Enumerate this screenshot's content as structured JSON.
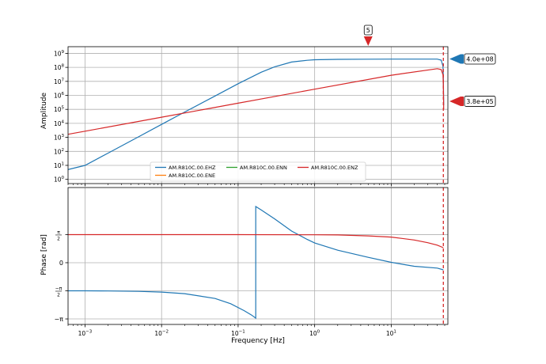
{
  "chart_data": [
    {
      "type": "line",
      "panel": "amplitude",
      "ylabel": "Amplitude",
      "xscale": "log",
      "yscale": "log",
      "xlim": [
        0.0006,
        55
      ],
      "ylim": [
        0.5,
        3000000000
      ],
      "grid": true,
      "xticks": [
        0.001,
        0.01,
        0.1,
        1,
        10
      ],
      "yticks": [
        1,
        10,
        100,
        1000,
        10000,
        100000,
        1000000,
        10000000,
        100000000,
        1000000000
      ],
      "ytick_labels": [
        {
          "base": "10",
          "exp": "0"
        },
        {
          "base": "10",
          "exp": "1"
        },
        {
          "base": "10",
          "exp": "2"
        },
        {
          "base": "10",
          "exp": "3"
        },
        {
          "base": "10",
          "exp": "4"
        },
        {
          "base": "10",
          "exp": "5"
        },
        {
          "base": "10",
          "exp": "6"
        },
        {
          "base": "10",
          "exp": "7"
        },
        {
          "base": "10",
          "exp": "8"
        },
        {
          "base": "10",
          "exp": "9"
        }
      ],
      "legend_placement": "lower-center",
      "series": [
        {
          "name": "AM.R810C.00.EHZ",
          "color": "#1f77b4",
          "x": [
            0.0006,
            0.001,
            0.002,
            0.005,
            0.01,
            0.02,
            0.05,
            0.1,
            0.2,
            0.3,
            0.5,
            0.8,
            1,
            2,
            5,
            10,
            20,
            40,
            45,
            47.5,
            48,
            48.5
          ],
          "y": [
            5,
            10,
            75,
            1100,
            8500,
            64000,
            900000,
            6800000,
            45000000,
            110000000,
            240000000,
            320000000,
            350000000,
            375000000,
            385000000,
            388000000,
            390000000,
            390000000,
            330000000,
            120000000,
            15000000,
            200000
          ]
        },
        {
          "name": "AM.R810C.00.ENE",
          "color": "#ff7f0e",
          "x": [],
          "y": []
        },
        {
          "name": "AM.R810C.00.ENN",
          "color": "#2ca02c",
          "x": [],
          "y": []
        },
        {
          "name": "AM.R810C.00.ENZ",
          "color": "#d62728",
          "x": [
            0.0006,
            0.001,
            0.01,
            0.1,
            1,
            10,
            40,
            45,
            47.5,
            48,
            48.5
          ],
          "y": [
            1650,
            2750,
            27500,
            275000,
            2750000,
            27500000,
            80000000,
            70000000,
            30000000,
            5000000,
            100000
          ]
        }
      ],
      "annotations": [
        {
          "label": "5",
          "x": 5,
          "kind": "flag",
          "color": "#d62728"
        },
        {
          "label": "4.0e+08",
          "y": 400000000,
          "kind": "flag",
          "color": "#1f77b4"
        },
        {
          "label": "3.8e+05",
          "y": 380000,
          "kind": "flag",
          "color": "#d62728"
        }
      ],
      "vline": {
        "x": 48,
        "color": "#d62728",
        "style": "dashed"
      }
    },
    {
      "type": "line",
      "panel": "phase",
      "xlabel": "Frequency [Hz]",
      "ylabel": "Phase [rad]",
      "xscale": "log",
      "xlim": [
        0.0006,
        55
      ],
      "ylim": [
        -3.45,
        4.2
      ],
      "grid": true,
      "xticks": [
        0.001,
        0.01,
        0.1,
        1,
        10
      ],
      "xtick_labels": [
        {
          "base": "10",
          "exp": "−3"
        },
        {
          "base": "10",
          "exp": "−2"
        },
        {
          "base": "10",
          "exp": "−1"
        },
        {
          "base": "10",
          "exp": "0"
        },
        {
          "base": "10",
          "exp": "1"
        }
      ],
      "yticks": [
        -3.14159,
        -1.5708,
        0,
        1.5708
      ],
      "ytick_labels": [
        "−π",
        "−π/2",
        "0",
        "π/2"
      ],
      "series": [
        {
          "name": "AM.R810C.00.EHZ",
          "color": "#1f77b4",
          "x": [
            0.0006,
            0.001,
            0.002,
            0.005,
            0.01,
            0.02,
            0.05,
            0.08,
            0.12,
            0.15,
            0.17,
            0.17,
            0.2,
            0.3,
            0.5,
            0.8,
            1,
            2,
            5,
            10,
            20,
            40,
            48
          ],
          "y": [
            -1.57,
            -1.572,
            -1.578,
            -1.6,
            -1.64,
            -1.73,
            -2.0,
            -2.29,
            -2.68,
            -2.93,
            -3.1,
            3.14,
            2.95,
            2.45,
            1.77,
            1.3,
            1.1,
            0.7,
            0.3,
            0.02,
            -0.2,
            -0.3,
            -0.4
          ]
        },
        {
          "name": "AM.R810C.00.ENZ",
          "color": "#d62728",
          "x": [
            0.0006,
            0.01,
            0.1,
            1,
            2,
            5,
            10,
            20,
            30,
            40,
            48
          ],
          "y": [
            1.5708,
            1.5708,
            1.5705,
            1.56,
            1.55,
            1.5,
            1.43,
            1.27,
            1.12,
            0.98,
            0.84
          ]
        }
      ],
      "vline": {
        "x": 48,
        "color": "#d62728",
        "style": "dashed"
      }
    }
  ]
}
